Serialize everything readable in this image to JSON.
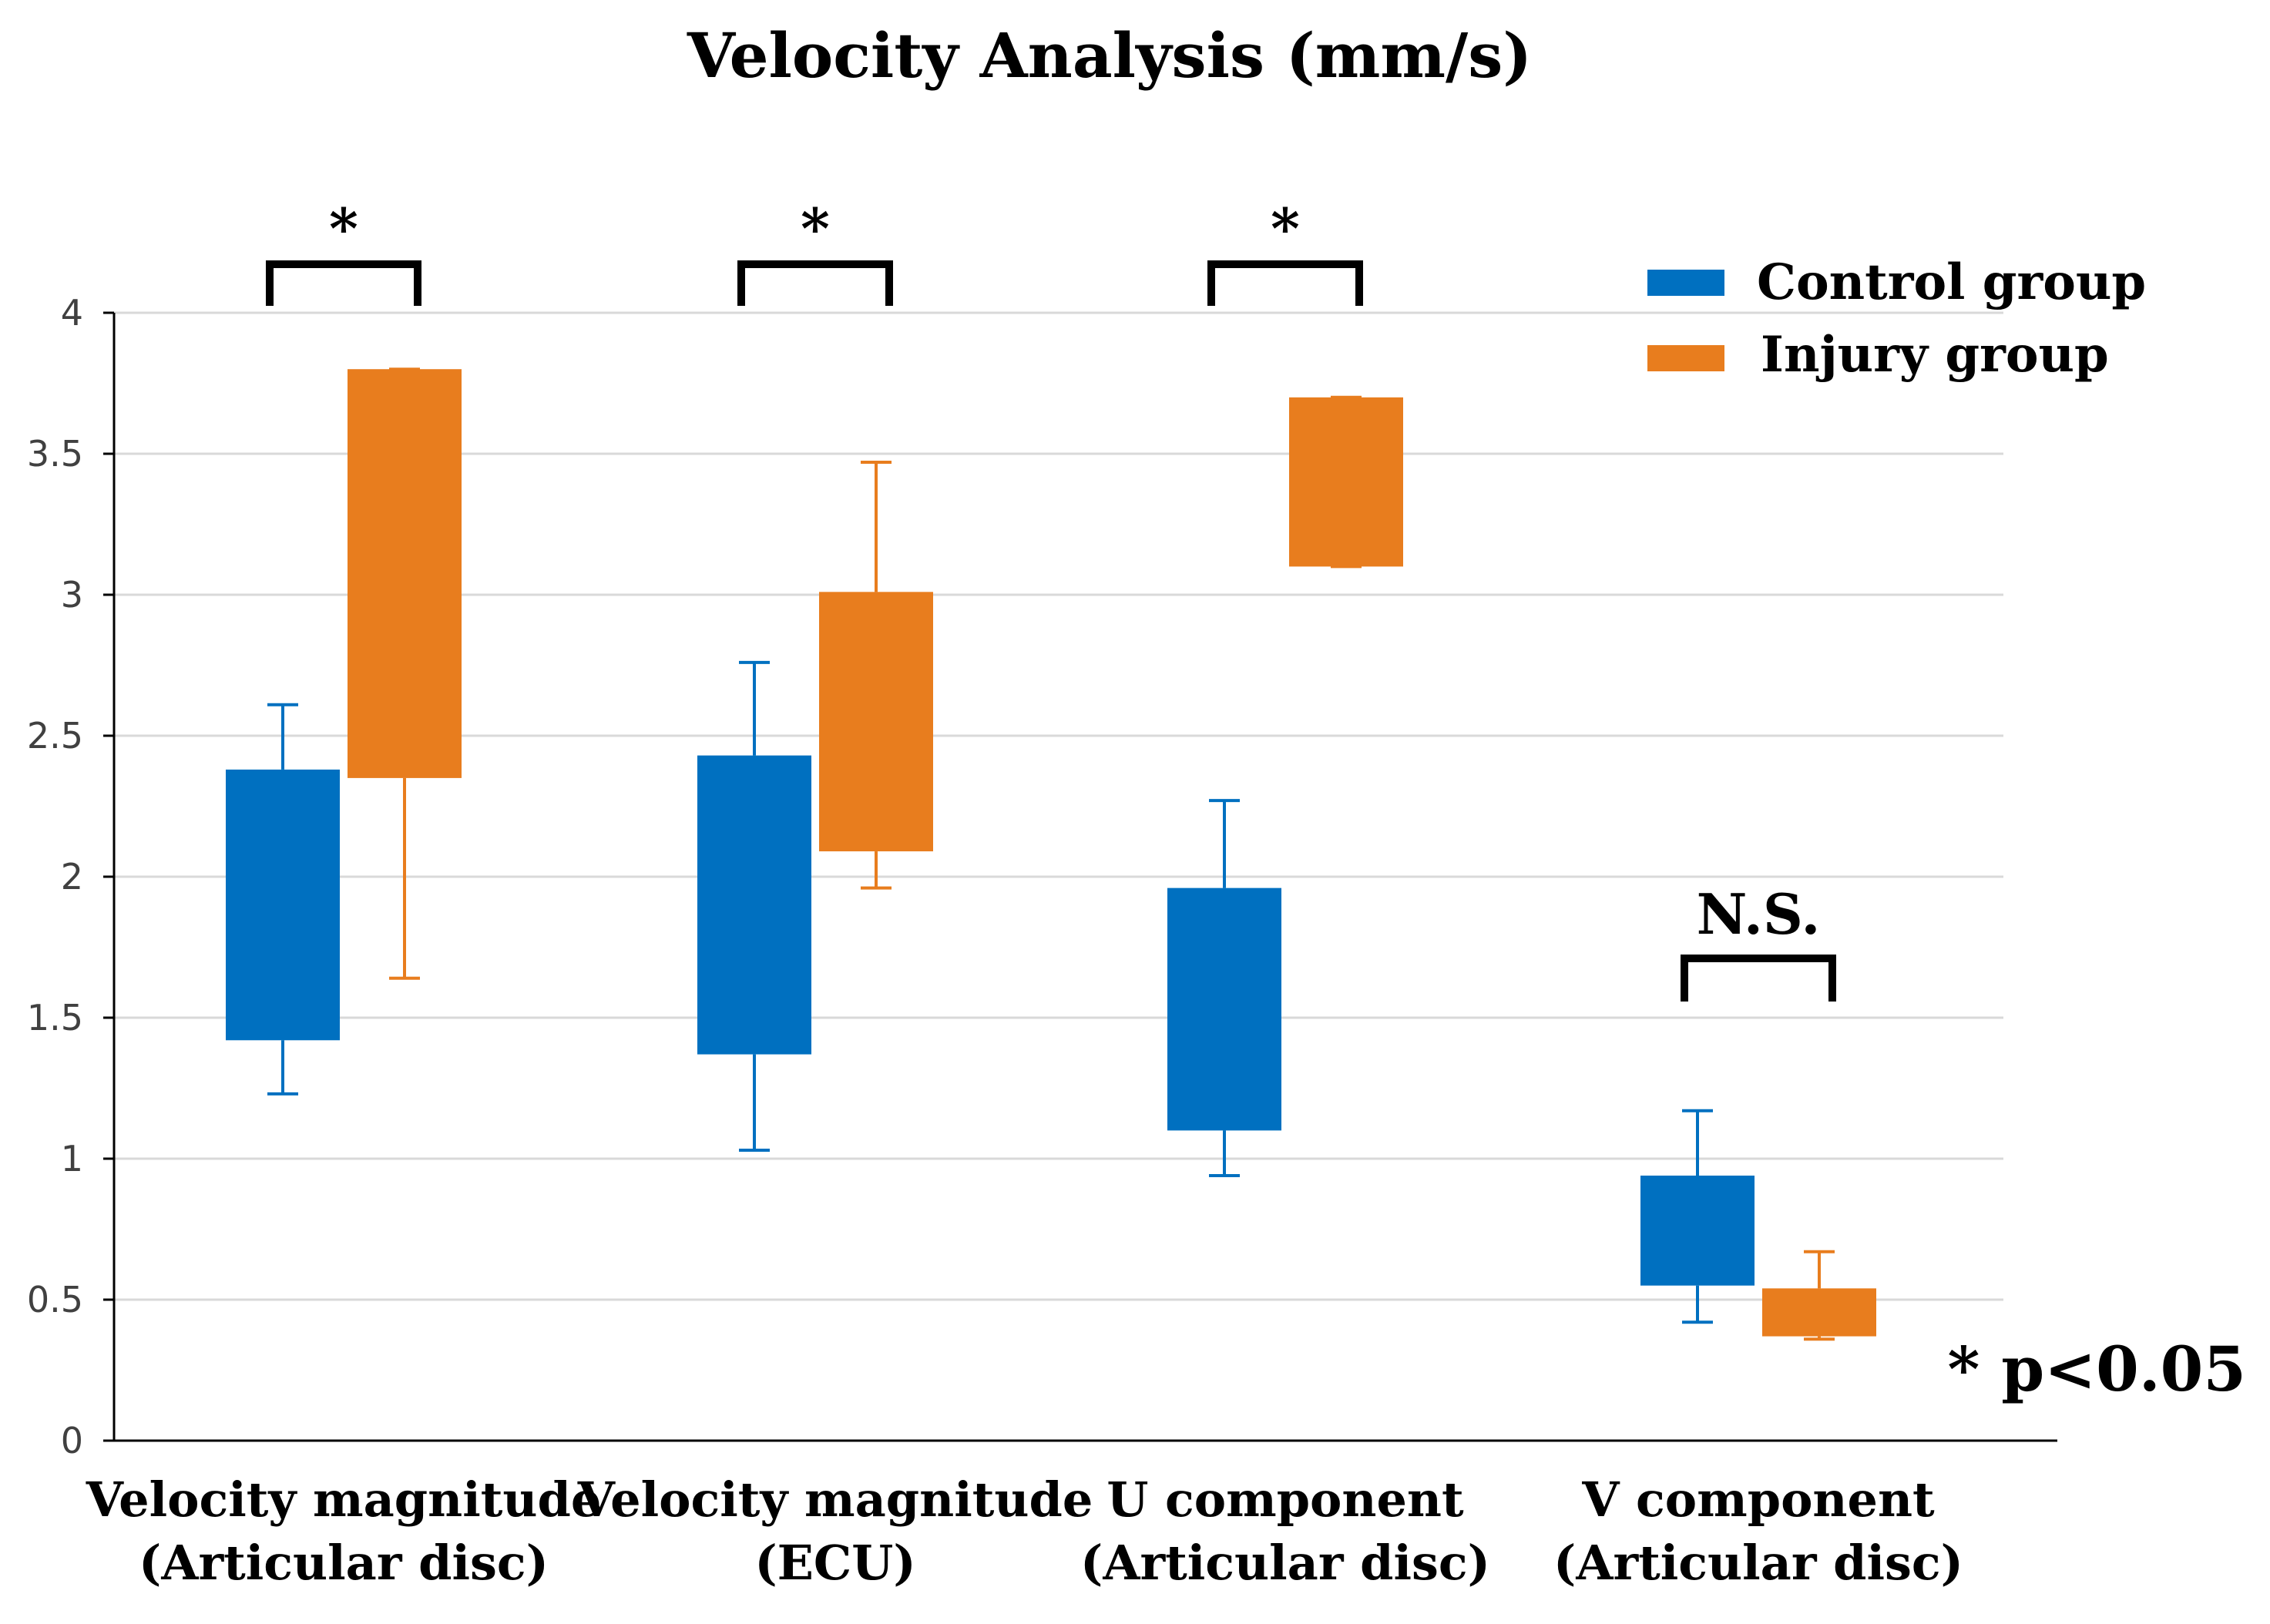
{
  "chart_data": {
    "type": "box",
    "title": "Velocity Analysis (mm/s)",
    "ylim": [
      0,
      4
    ],
    "yticks": [
      "0",
      "0.5",
      "1",
      "1.5",
      "2",
      "2.5",
      "3",
      "3.5",
      "4"
    ],
    "ytick_values": [
      0,
      0.5,
      1,
      1.5,
      2,
      2.5,
      3,
      3.5,
      4
    ],
    "grid": true,
    "legend_position": "top-right",
    "categories": [
      {
        "line1": "Velocity magnitude",
        "line2": "(Articular disc)",
        "significance": "*"
      },
      {
        "line1": "Velocity magnitude",
        "line2": "(ECU)",
        "significance": "*"
      },
      {
        "line1": "U component",
        "line2": "(Articular disc)",
        "significance": "*"
      },
      {
        "line1": "V component",
        "line2": "(Articular disc)",
        "significance": "N.S."
      }
    ],
    "series": [
      {
        "name": "Control group",
        "color": "#0070C0",
        "boxes": [
          {
            "whisker_low": 1.23,
            "q1": 1.42,
            "q3": 2.38,
            "whisker_high": 2.61
          },
          {
            "whisker_low": 1.03,
            "q1": 1.37,
            "q3": 2.43,
            "whisker_high": 2.76
          },
          {
            "whisker_low": 0.94,
            "q1": 1.1,
            "q3": 1.96,
            "whisker_high": 2.27
          },
          {
            "whisker_low": 0.42,
            "q1": 0.55,
            "q3": 0.94,
            "whisker_high": 1.17
          }
        ]
      },
      {
        "name": "Injury group",
        "color": "#E87D1E",
        "boxes": [
          {
            "whisker_low": 1.64,
            "q1": 2.35,
            "q3": 3.8,
            "whisker_high": 3.8
          },
          {
            "whisker_low": 1.96,
            "q1": 2.09,
            "q3": 3.01,
            "whisker_high": 3.47
          },
          {
            "whisker_low": 3.1,
            "q1": 3.1,
            "q3": 3.7,
            "whisker_high": 3.7
          },
          {
            "whisker_low": 0.36,
            "q1": 0.37,
            "q3": 0.54,
            "whisker_high": 0.67
          }
        ]
      }
    ],
    "annotation": "* p<0.05"
  }
}
